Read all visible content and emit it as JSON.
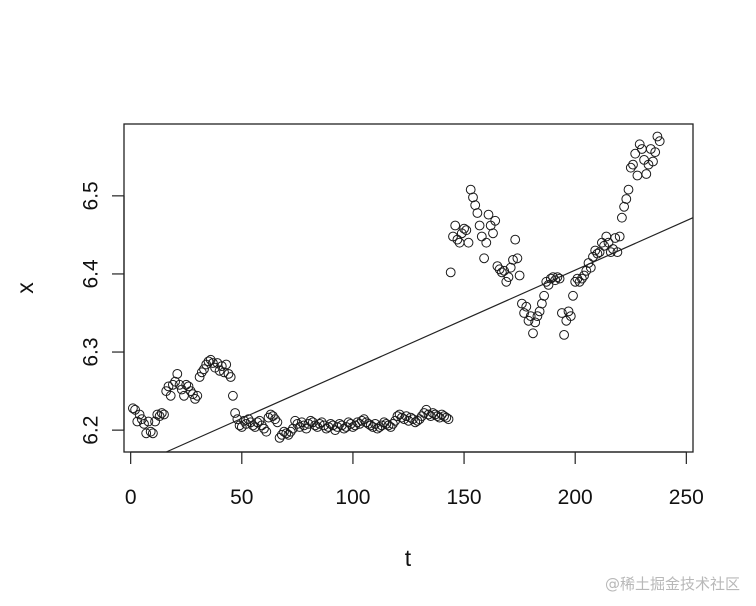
{
  "chart_data": {
    "type": "scatter",
    "xlabel": "t",
    "ylabel": "x",
    "xlim": [
      -3,
      253
    ],
    "ylim": [
      6.172,
      6.592
    ],
    "x_ticks": [
      0,
      50,
      100,
      150,
      200,
      250
    ],
    "y_ticks": [
      6.2,
      6.3,
      6.4,
      6.5
    ],
    "grid": false,
    "marker": "open-circle",
    "trend_line": {
      "x": [
        16,
        253
      ],
      "y": [
        6.172,
        6.472
      ]
    },
    "points": [
      [
        1,
        6.228
      ],
      [
        2,
        6.226
      ],
      [
        3,
        6.211
      ],
      [
        4,
        6.22
      ],
      [
        5,
        6.214
      ],
      [
        6,
        6.208
      ],
      [
        7,
        6.196
      ],
      [
        8,
        6.211
      ],
      [
        9,
        6.198
      ],
      [
        10,
        6.196
      ],
      [
        11,
        6.211
      ],
      [
        12,
        6.22
      ],
      [
        13,
        6.218
      ],
      [
        14,
        6.222
      ],
      [
        15,
        6.22
      ],
      [
        16,
        6.25
      ],
      [
        17,
        6.256
      ],
      [
        18,
        6.244
      ],
      [
        19,
        6.258
      ],
      [
        20,
        6.262
      ],
      [
        21,
        6.272
      ],
      [
        22,
        6.258
      ],
      [
        23,
        6.252
      ],
      [
        24,
        6.244
      ],
      [
        25,
        6.258
      ],
      [
        26,
        6.256
      ],
      [
        27,
        6.25
      ],
      [
        28,
        6.246
      ],
      [
        29,
        6.24
      ],
      [
        30,
        6.244
      ],
      [
        31,
        6.268
      ],
      [
        32,
        6.274
      ],
      [
        33,
        6.278
      ],
      [
        34,
        6.284
      ],
      [
        35,
        6.288
      ],
      [
        36,
        6.29
      ],
      [
        37,
        6.286
      ],
      [
        38,
        6.28
      ],
      [
        39,
        6.286
      ],
      [
        40,
        6.276
      ],
      [
        41,
        6.282
      ],
      [
        42,
        6.274
      ],
      [
        43,
        6.284
      ],
      [
        44,
        6.272
      ],
      [
        45,
        6.268
      ],
      [
        46,
        6.244
      ],
      [
        47,
        6.222
      ],
      [
        48,
        6.214
      ],
      [
        49,
        6.206
      ],
      [
        50,
        6.204
      ],
      [
        51,
        6.212
      ],
      [
        52,
        6.208
      ],
      [
        53,
        6.214
      ],
      [
        54,
        6.21
      ],
      [
        55,
        6.206
      ],
      [
        56,
        6.204
      ],
      [
        57,
        6.21
      ],
      [
        58,
        6.212
      ],
      [
        59,
        6.206
      ],
      [
        60,
        6.202
      ],
      [
        61,
        6.198
      ],
      [
        62,
        6.216
      ],
      [
        63,
        6.22
      ],
      [
        64,
        6.218
      ],
      [
        65,
        6.214
      ],
      [
        66,
        6.21
      ],
      [
        67,
        6.19
      ],
      [
        68,
        6.194
      ],
      [
        69,
        6.198
      ],
      [
        70,
        6.196
      ],
      [
        71,
        6.194
      ],
      [
        72,
        6.198
      ],
      [
        73,
        6.202
      ],
      [
        74,
        6.212
      ],
      [
        75,
        6.208
      ],
      [
        76,
        6.204
      ],
      [
        77,
        6.21
      ],
      [
        78,
        6.206
      ],
      [
        79,
        6.202
      ],
      [
        80,
        6.208
      ],
      [
        81,
        6.212
      ],
      [
        82,
        6.21
      ],
      [
        83,
        6.206
      ],
      [
        84,
        6.204
      ],
      [
        85,
        6.208
      ],
      [
        86,
        6.21
      ],
      [
        87,
        6.206
      ],
      [
        88,
        6.202
      ],
      [
        89,
        6.204
      ],
      [
        90,
        6.208
      ],
      [
        91,
        6.206
      ],
      [
        92,
        6.2
      ],
      [
        93,
        6.204
      ],
      [
        94,
        6.208
      ],
      [
        95,
        6.206
      ],
      [
        96,
        6.202
      ],
      [
        97,
        6.204
      ],
      [
        98,
        6.21
      ],
      [
        99,
        6.208
      ],
      [
        100,
        6.204
      ],
      [
        101,
        6.206
      ],
      [
        102,
        6.21
      ],
      [
        103,
        6.208
      ],
      [
        104,
        6.212
      ],
      [
        105,
        6.214
      ],
      [
        106,
        6.21
      ],
      [
        107,
        6.208
      ],
      [
        108,
        6.206
      ],
      [
        109,
        6.204
      ],
      [
        110,
        6.208
      ],
      [
        111,
        6.202
      ],
      [
        112,
        6.204
      ],
      [
        113,
        6.206
      ],
      [
        114,
        6.21
      ],
      [
        115,
        6.208
      ],
      [
        116,
        6.206
      ],
      [
        117,
        6.204
      ],
      [
        118,
        6.208
      ],
      [
        119,
        6.212
      ],
      [
        120,
        6.218
      ],
      [
        121,
        6.22
      ],
      [
        122,
        6.216
      ],
      [
        123,
        6.214
      ],
      [
        124,
        6.218
      ],
      [
        125,
        6.212
      ],
      [
        126,
        6.216
      ],
      [
        127,
        6.214
      ],
      [
        128,
        6.21
      ],
      [
        129,
        6.212
      ],
      [
        130,
        6.214
      ],
      [
        131,
        6.218
      ],
      [
        132,
        6.222
      ],
      [
        133,
        6.226
      ],
      [
        134,
        6.22
      ],
      [
        135,
        6.218
      ],
      [
        136,
        6.222
      ],
      [
        137,
        6.22
      ],
      [
        138,
        6.218
      ],
      [
        139,
        6.216
      ],
      [
        140,
        6.22
      ],
      [
        141,
        6.218
      ],
      [
        142,
        6.216
      ],
      [
        143,
        6.214
      ],
      [
        144,
        6.402
      ],
      [
        145,
        6.448
      ],
      [
        146,
        6.462
      ],
      [
        147,
        6.444
      ],
      [
        148,
        6.44
      ],
      [
        149,
        6.452
      ],
      [
        150,
        6.458
      ],
      [
        151,
        6.456
      ],
      [
        152,
        6.44
      ],
      [
        153,
        6.508
      ],
      [
        154,
        6.498
      ],
      [
        155,
        6.488
      ],
      [
        156,
        6.478
      ],
      [
        157,
        6.462
      ],
      [
        158,
        6.448
      ],
      [
        159,
        6.42
      ],
      [
        160,
        6.44
      ],
      [
        161,
        6.476
      ],
      [
        162,
        6.462
      ],
      [
        163,
        6.452
      ],
      [
        164,
        6.468
      ],
      [
        165,
        6.41
      ],
      [
        166,
        6.406
      ],
      [
        167,
        6.402
      ],
      [
        168,
        6.404
      ],
      [
        169,
        6.39
      ],
      [
        170,
        6.396
      ],
      [
        171,
        6.408
      ],
      [
        172,
        6.418
      ],
      [
        173,
        6.444
      ],
      [
        174,
        6.42
      ],
      [
        175,
        6.398
      ],
      [
        176,
        6.362
      ],
      [
        177,
        6.35
      ],
      [
        178,
        6.358
      ],
      [
        179,
        6.34
      ],
      [
        180,
        6.346
      ],
      [
        181,
        6.324
      ],
      [
        182,
        6.338
      ],
      [
        183,
        6.346
      ],
      [
        184,
        6.352
      ],
      [
        185,
        6.362
      ],
      [
        186,
        6.372
      ],
      [
        187,
        6.39
      ],
      [
        188,
        6.386
      ],
      [
        189,
        6.394
      ],
      [
        190,
        6.396
      ],
      [
        191,
        6.392
      ],
      [
        192,
        6.396
      ],
      [
        193,
        6.394
      ],
      [
        194,
        6.35
      ],
      [
        195,
        6.322
      ],
      [
        196,
        6.34
      ],
      [
        197,
        6.352
      ],
      [
        198,
        6.346
      ],
      [
        199,
        6.372
      ],
      [
        200,
        6.39
      ],
      [
        201,
        6.394
      ],
      [
        202,
        6.39
      ],
      [
        203,
        6.394
      ],
      [
        204,
        6.398
      ],
      [
        205,
        6.404
      ],
      [
        206,
        6.414
      ],
      [
        207,
        6.408
      ],
      [
        208,
        6.422
      ],
      [
        209,
        6.43
      ],
      [
        210,
        6.426
      ],
      [
        211,
        6.428
      ],
      [
        212,
        6.44
      ],
      [
        213,
        6.436
      ],
      [
        214,
        6.448
      ],
      [
        215,
        6.44
      ],
      [
        216,
        6.428
      ],
      [
        217,
        6.432
      ],
      [
        218,
        6.446
      ],
      [
        219,
        6.428
      ],
      [
        220,
        6.448
      ],
      [
        221,
        6.472
      ],
      [
        222,
        6.486
      ],
      [
        223,
        6.496
      ],
      [
        224,
        6.508
      ],
      [
        225,
        6.536
      ],
      [
        226,
        6.54
      ],
      [
        227,
        6.554
      ],
      [
        228,
        6.526
      ],
      [
        229,
        6.566
      ],
      [
        230,
        6.56
      ],
      [
        231,
        6.546
      ],
      [
        232,
        6.528
      ],
      [
        233,
        6.54
      ],
      [
        234,
        6.56
      ],
      [
        235,
        6.544
      ],
      [
        236,
        6.556
      ],
      [
        237,
        6.576
      ],
      [
        238,
        6.57
      ]
    ]
  },
  "watermark": "@稀土掘金技术社区"
}
